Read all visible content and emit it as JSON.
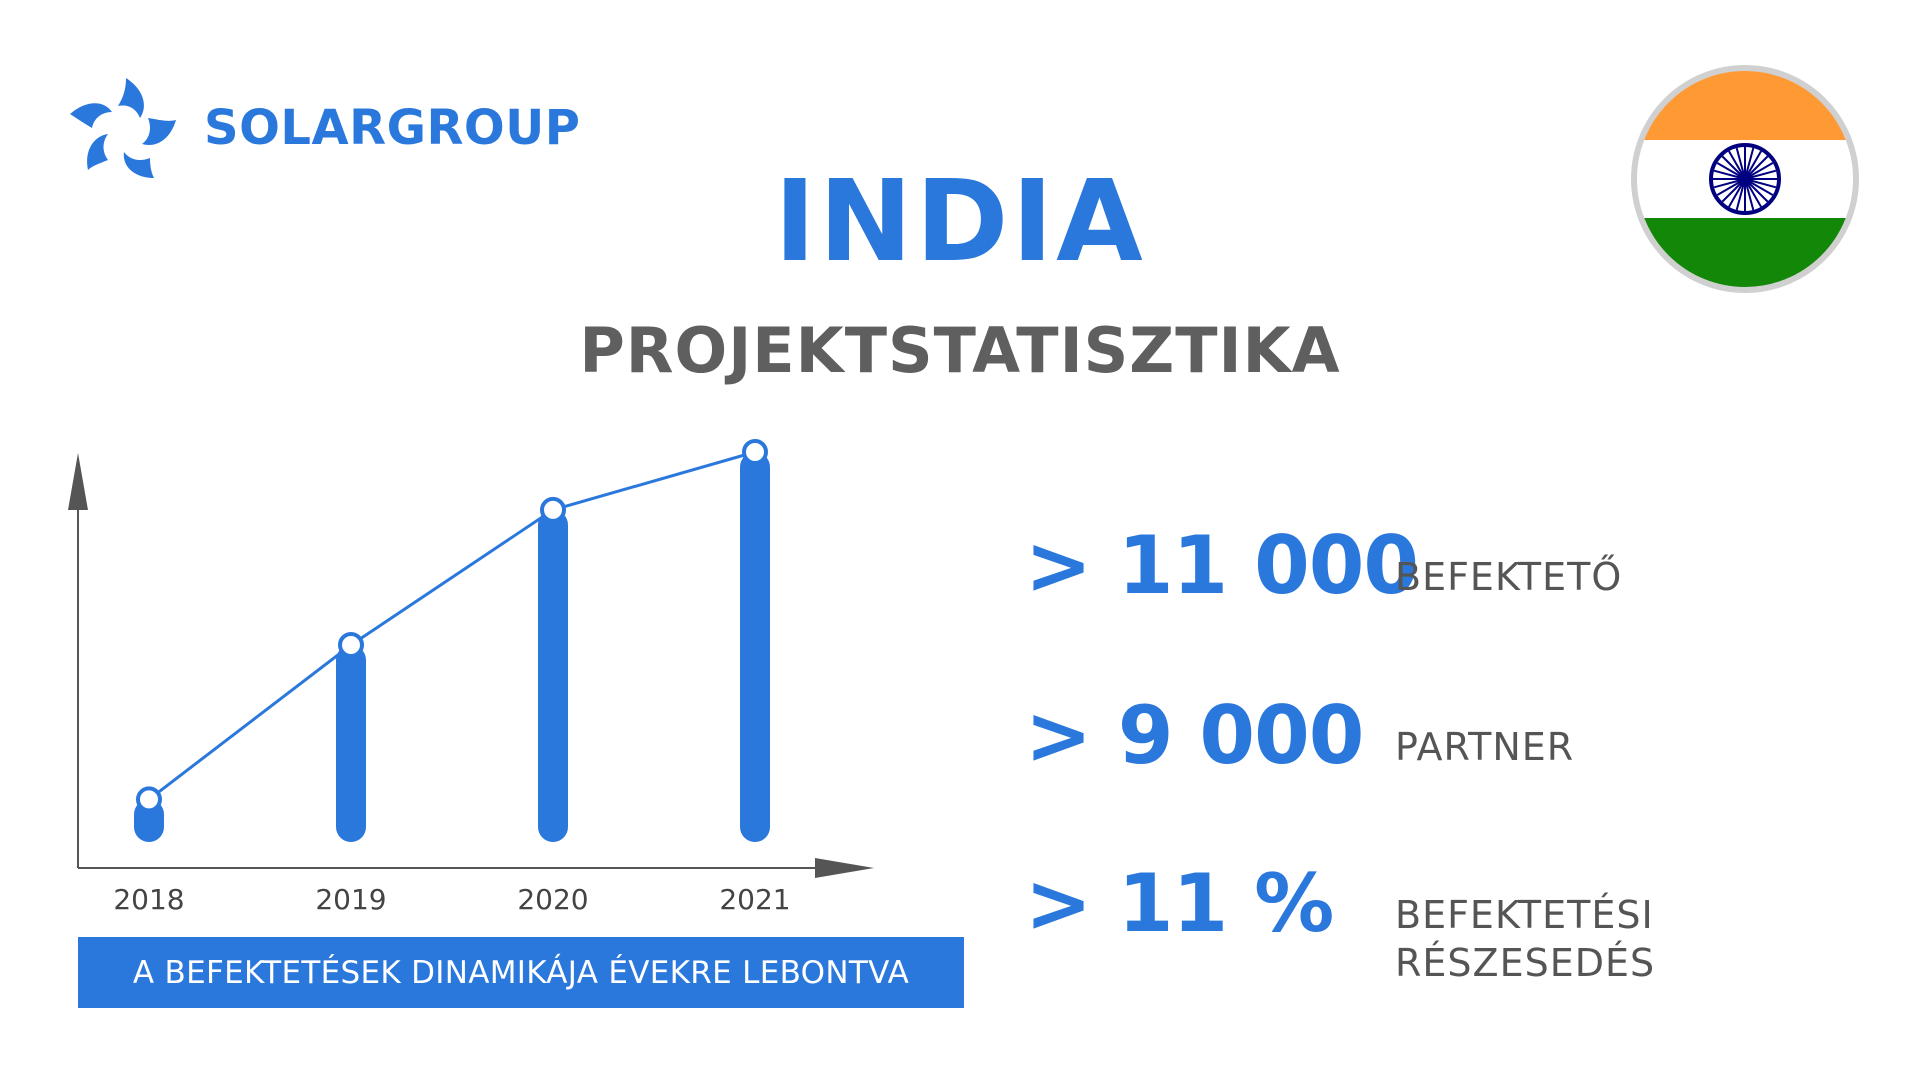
{
  "brand": {
    "name": "SOLARGROUP",
    "color": "#2b78dd",
    "logo_icon": "solar-swirl-icon"
  },
  "flag": {
    "icon": "india-flag-icon",
    "colors": {
      "saffron": "#ff9933",
      "white": "#ffffff",
      "green": "#138808",
      "chakra": "#000080",
      "ring": "#d0d0d0"
    }
  },
  "header": {
    "title": "INDIA",
    "subtitle": "PROJEKTSTATISZTIKA"
  },
  "chart_data": {
    "type": "bar",
    "categories": [
      "2018",
      "2019",
      "2020",
      "2021"
    ],
    "values": [
      1,
      5,
      8.5,
      10
    ],
    "line_overlay": true,
    "ylim": [
      0,
      10
    ],
    "xlabel": "",
    "ylabel": "",
    "grid": false,
    "caption": "A BEFEKTETÉSEK DINAMIKÁJA ÉVEKRE LEBONTVA",
    "colors": {
      "bar": "#2b78dd",
      "axis": "#555555"
    }
  },
  "stats": [
    {
      "value": "> 11 000",
      "label": "BEFEKTETŐ"
    },
    {
      "value": "> 9 000",
      "label": "PARTNER"
    },
    {
      "value": "> 11 %",
      "label_line1": "BEFEKTETÉSI",
      "label_line2": "RÉSZESEDÉS"
    }
  ]
}
